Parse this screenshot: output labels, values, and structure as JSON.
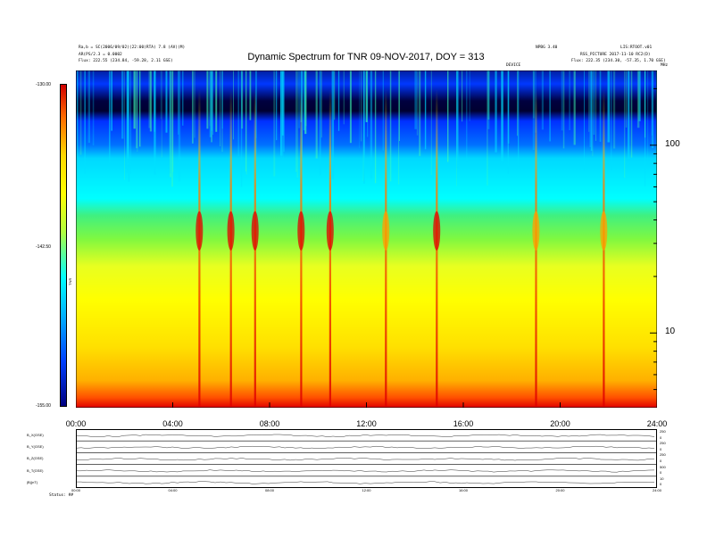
{
  "header": {
    "title": "Dynamic Spectrum for TNR 09-NOV-2017, DOY = 313",
    "top_left_1": "Ra,b = SC(2006/09/02)(22:00)RTA) 7.8 (AV)(M)",
    "top_left_2": "AR(PS/2.3 = 0.0002",
    "top_left_3": "Flux:    222.55 (234.84, -59.28, 2.11 GSE)",
    "top_right_1": "NPBG 3.40",
    "top_right_2": "LIS:RTOOT.v01",
    "top_right_3": "RSS_PICTURE 2017-11-10 RC2(D)",
    "top_right_4": "Flux:    222.35 (234.30, -57.35, 1.70 GSE)",
    "label_right_corner": "MHz",
    "label_small_center": "DEVICE"
  },
  "colorbar": {
    "top_label": "-130.00",
    "mid_label": "-142.50",
    "bottom_label": "-155.00",
    "unit": "TNR"
  },
  "bottom_panel": {
    "row_labels": [
      "B_X(GSE)",
      "B_Y(GSE)",
      "B_Z(GSE)",
      "B_T(GSE)",
      "|B|(nT)"
    ],
    "right_labels": [
      "250",
      "0",
      "250",
      "0",
      "250",
      "0",
      "500",
      "0",
      "10",
      "0"
    ],
    "x_ticks": [
      "00:00",
      "04:00",
      "08:00",
      "12:00",
      "16:00",
      "20:00",
      "24:00"
    ],
    "footer_label": "Status:  ##"
  },
  "chart_data": {
    "type": "heatmap",
    "title": "Dynamic Spectrum for TNR 09-NOV-2017, DOY = 313",
    "xlabel": "",
    "ylabel": "",
    "x_ticks": [
      "00:00",
      "04:00",
      "08:00",
      "12:00",
      "16:00",
      "20:00",
      "24:00"
    ],
    "xlim_hours": [
      0,
      24
    ],
    "y_scale": "log",
    "y_ticks": [
      10,
      100
    ],
    "ylim_khz": [
      4,
      250
    ],
    "colorbar_range_db": [
      -155.0,
      -130.0
    ],
    "bands": [
      {
        "freq_top": 250,
        "freq_bottom": 160,
        "level": "dark-blue"
      },
      {
        "freq_top": 160,
        "freq_bottom": 100,
        "level": "blue"
      },
      {
        "freq_top": 100,
        "freq_bottom": 50,
        "level": "cyan"
      },
      {
        "freq_top": 50,
        "freq_bottom": 25,
        "level": "green"
      },
      {
        "freq_top": 25,
        "freq_bottom": 12,
        "level": "yellow-green"
      },
      {
        "freq_top": 12,
        "freq_bottom": 6,
        "level": "yellow"
      },
      {
        "freq_top": 6,
        "freq_bottom": 4,
        "level": "orange-red"
      }
    ],
    "bursts_hours": [
      {
        "time": 5.1,
        "level": "red"
      },
      {
        "time": 6.4,
        "level": "red"
      },
      {
        "time": 7.4,
        "level": "red"
      },
      {
        "time": 9.3,
        "level": "red"
      },
      {
        "time": 10.5,
        "level": "red"
      },
      {
        "time": 12.8,
        "level": "orange"
      },
      {
        "time": 14.9,
        "level": "red"
      },
      {
        "time": 19.0,
        "level": "orange"
      },
      {
        "time": 21.8,
        "level": "orange"
      }
    ],
    "colors": {
      "dark-blue": "#000030",
      "blue": "#0030ff",
      "cyan": "#00e8ff",
      "green": "#50f030",
      "yellow-green": "#e0ff20",
      "yellow": "#ffff00",
      "orange": "#ffa000",
      "orange-red": "#ff5000",
      "red": "#e00000"
    }
  }
}
